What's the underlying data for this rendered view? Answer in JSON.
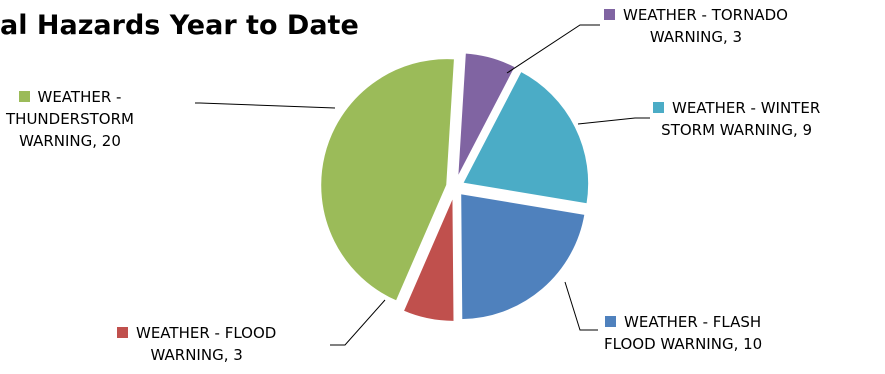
{
  "chart_data": {
    "type": "pie",
    "title": "al Hazards Year to Date",
    "slices": [
      {
        "line1": "WEATHER - TORNADO",
        "line2": "WARNING, 3",
        "value": 3,
        "color": "#8064A2"
      },
      {
        "line1": "WEATHER - WINTER",
        "line2": "STORM WARNING, 9",
        "value": 9,
        "color": "#4BACC6"
      },
      {
        "line1": "WEATHER - FLASH",
        "line2": "FLOOD WARNING, 10",
        "value": 10,
        "color": "#4F81BD"
      },
      {
        "line1": "WEATHER - FLOOD",
        "line2": "WARNING, 3",
        "value": 3,
        "color": "#C0504D"
      },
      {
        "line1": "WEATHER -",
        "line2": "THUNDERSTORM",
        "line3": "WARNING, 20",
        "value": 20,
        "color": "#9BBB59"
      }
    ],
    "legend": "none",
    "start_angle_deg": 3.5,
    "exploded": true
  }
}
